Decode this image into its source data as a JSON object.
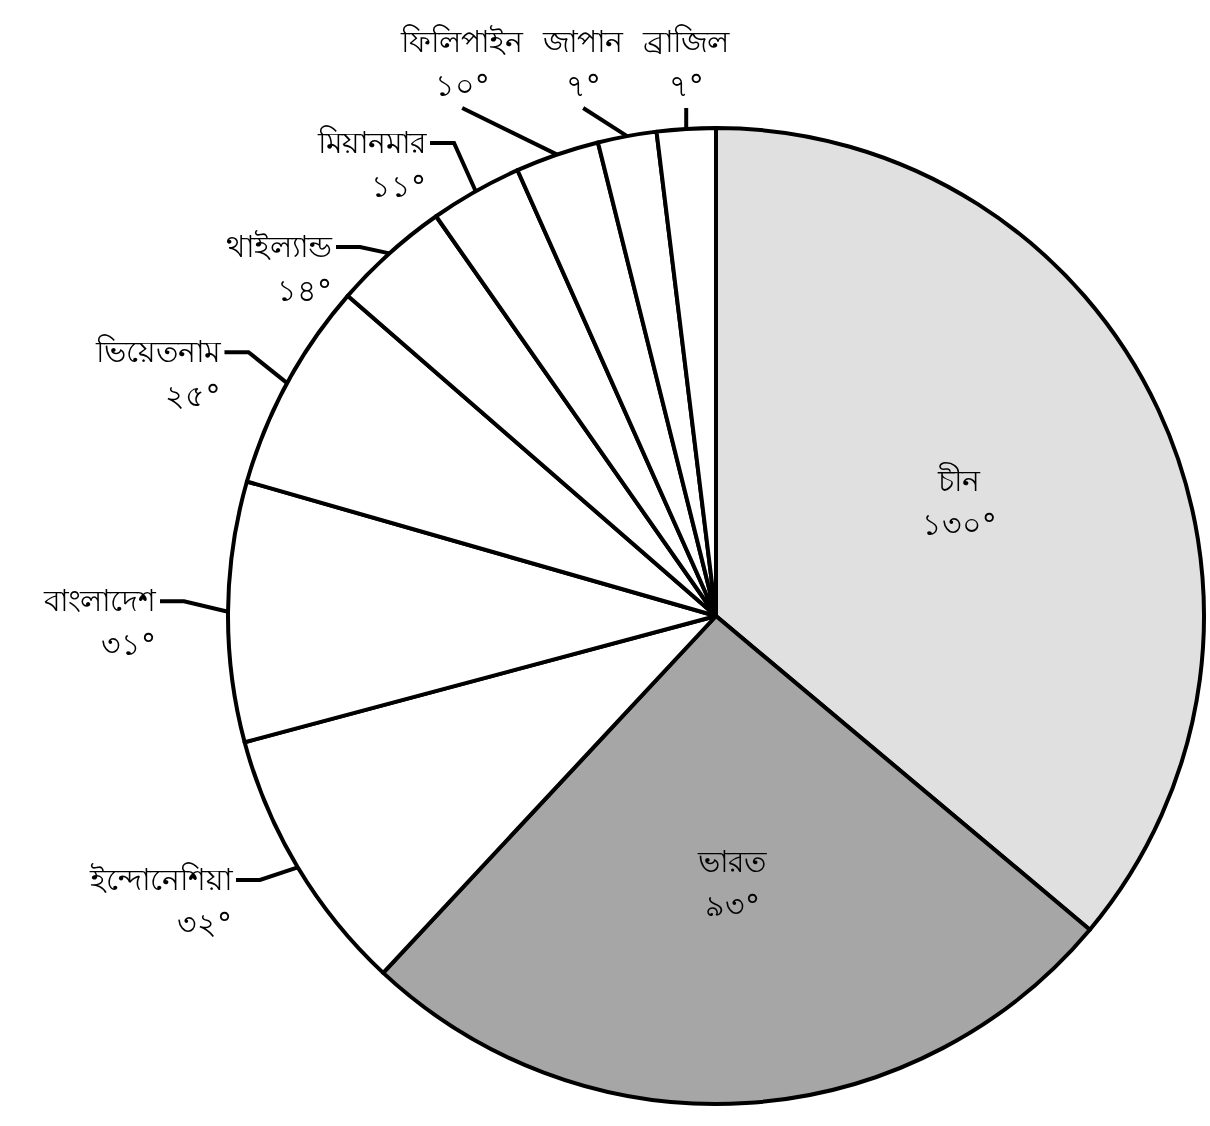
{
  "chart_data": {
    "type": "pie",
    "categories": [
      "চীন",
      "ভারত",
      "ইন্দোনেশিয়া",
      "বাংলাদেশ",
      "ভিয়েতনাম",
      "থাইল্যান্ড",
      "মিয়ানমার",
      "ফিলিপাইন",
      "জাপান",
      "ব্রাজিল"
    ],
    "values": [
      130,
      93,
      32,
      31,
      25,
      14,
      11,
      10,
      7,
      7
    ],
    "value_labels": [
      "১৩০°",
      "৯৩°",
      "৩২°",
      "৩১°",
      "২৫°",
      "১৪°",
      "১১°",
      "১০°",
      "৭°",
      "৭°"
    ],
    "colors": [
      "#e0e0e0",
      "#a6a6a6",
      "#ffffff",
      "#ffffff",
      "#ffffff",
      "#ffffff",
      "#ffffff",
      "#ffffff",
      "#ffffff",
      "#ffffff"
    ]
  }
}
